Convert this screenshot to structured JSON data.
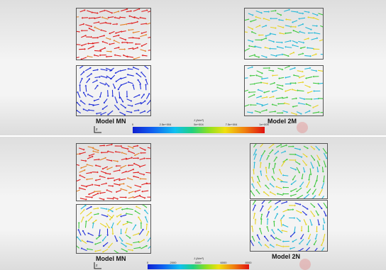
{
  "top_panel": {
    "left_label": "Model MN",
    "right_label": "Model 2M",
    "legend": {
      "title": "J (A/m²)",
      "ticks": [
        "0",
        "2.5e+004",
        "5e+004",
        "7.5e+004",
        "1e+005"
      ]
    }
  },
  "bottom_panel": {
    "left_label": "Model MN",
    "right_label": "Model 2N",
    "legend": {
      "title": "J (A/m²)",
      "ticks": [
        "0",
        "2000",
        "4000",
        "6000",
        "8000"
      ]
    }
  },
  "colors": {
    "red": "#e01a1a",
    "blue": "#1a2ad8",
    "cyan": "#22b8d8",
    "green": "#3cc83c",
    "yellow": "#e6d21e"
  },
  "icons": {
    "axis": "axis-triad-icon",
    "watermark": "logo-watermark-icon"
  }
}
